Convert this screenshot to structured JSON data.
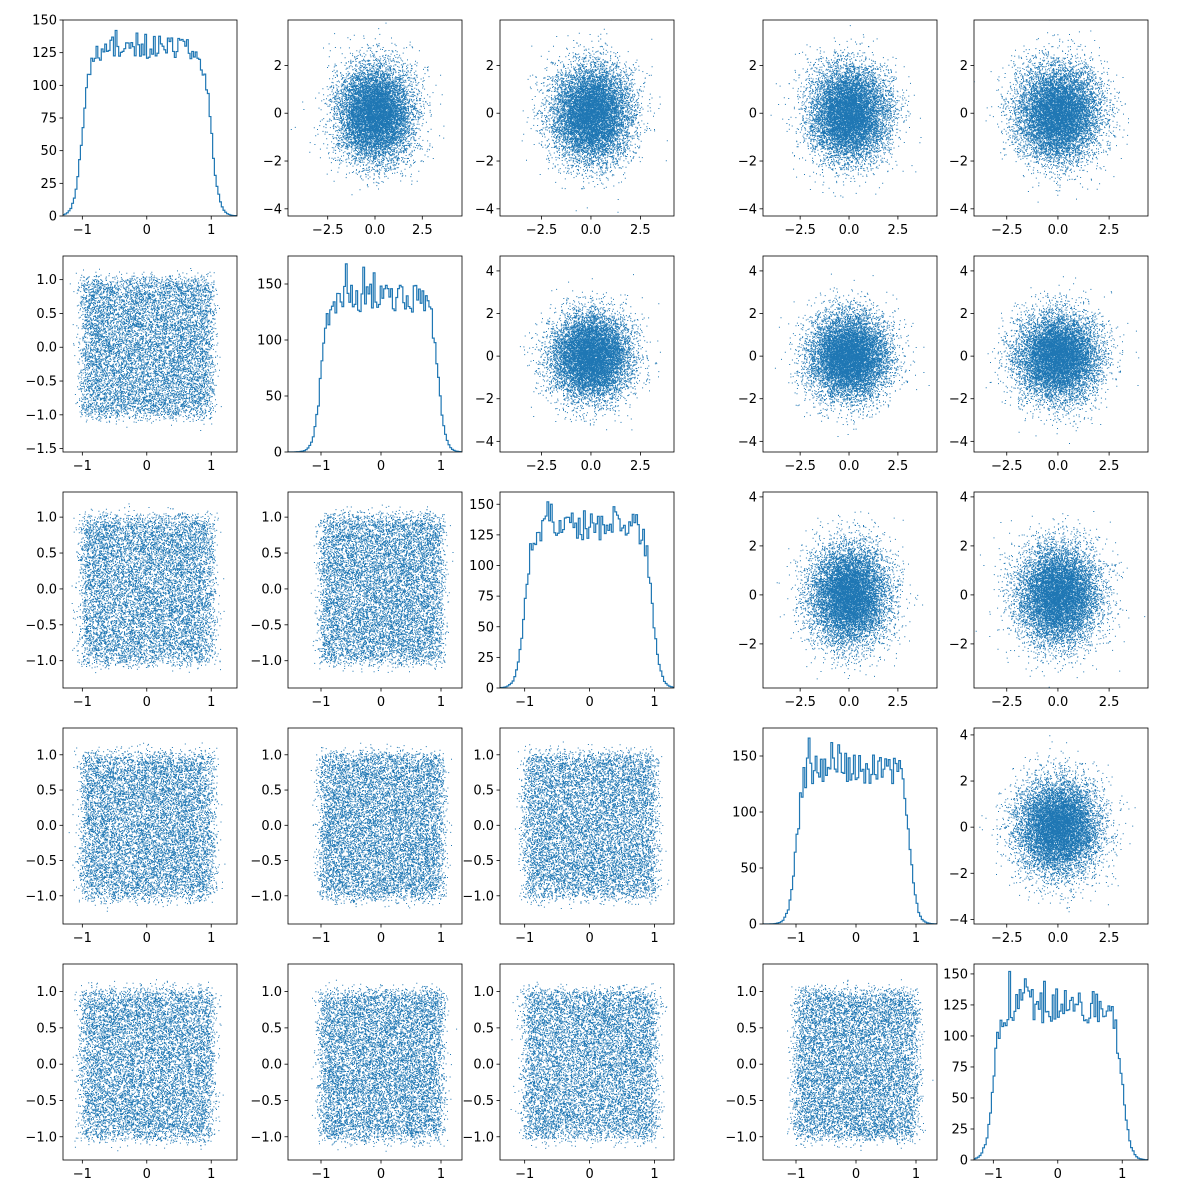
{
  "figure": {
    "background": "#ffffff",
    "series_color": "#1f77b4",
    "axis_color": "#000000"
  },
  "chart_data": [
    {
      "id": "p11",
      "type": "histogram",
      "row": 1,
      "col": 1,
      "xlim": [
        -1.3,
        1.4
      ],
      "ylim": [
        0,
        150
      ],
      "xticks": [
        -1,
        0,
        1
      ],
      "yticks": [
        0,
        25,
        50,
        75,
        100,
        125,
        150
      ],
      "profile": {
        "left_edge": -1.0,
        "right_edge": 1.0,
        "plateau": [
          120,
          138
        ],
        "drop_width": 0.13,
        "peaks": [
          142,
          140,
          139
        ]
      },
      "seed": 11
    },
    {
      "id": "p12",
      "type": "scatter",
      "row": 1,
      "col": 2,
      "xlim": [
        -4.6,
        4.6
      ],
      "ylim": [
        -4.3,
        3.9
      ],
      "xticks": [
        -2.5,
        0.0,
        2.5
      ],
      "yticks": [
        -4,
        -2,
        0,
        2
      ],
      "distribution": "normal",
      "center": [
        0,
        0
      ],
      "std": [
        1,
        1
      ],
      "n": 10000,
      "seed": 12
    },
    {
      "id": "p13",
      "type": "scatter",
      "row": 1,
      "col": 3,
      "xlim": [
        -4.6,
        4.2
      ],
      "ylim": [
        -4.3,
        3.9
      ],
      "xticks": [
        -2.5,
        0.0,
        2.5
      ],
      "yticks": [
        -4,
        -2,
        0,
        2
      ],
      "distribution": "normal",
      "center": [
        0,
        0
      ],
      "std": [
        1,
        1
      ],
      "n": 10000,
      "seed": 13
    },
    {
      "id": "p14",
      "type": "scatter",
      "row": 1,
      "col": 4,
      "xlim": [
        -4.4,
        4.5
      ],
      "ylim": [
        -4.3,
        3.9
      ],
      "xticks": [
        -2.5,
        0.0,
        2.5
      ],
      "yticks": [
        -4,
        -2,
        0,
        2
      ],
      "distribution": "normal",
      "center": [
        0,
        0
      ],
      "std": [
        1,
        1
      ],
      "n": 10000,
      "seed": 14
    },
    {
      "id": "p15",
      "type": "scatter",
      "row": 1,
      "col": 5,
      "xlim": [
        -4.1,
        4.4
      ],
      "ylim": [
        -4.3,
        3.9
      ],
      "xticks": [
        -2.5,
        0.0,
        2.5
      ],
      "yticks": [
        -4,
        -2,
        0,
        2
      ],
      "distribution": "normal",
      "center": [
        0,
        0
      ],
      "std": [
        1,
        1
      ],
      "n": 10000,
      "seed": 15
    },
    {
      "id": "p21",
      "type": "scatter",
      "row": 2,
      "col": 1,
      "xlim": [
        -1.3,
        1.4
      ],
      "ylim": [
        -1.55,
        1.35
      ],
      "xticks": [
        -1,
        0,
        1
      ],
      "yticks": [
        -1.5,
        -1.0,
        -0.5,
        0.0,
        0.5,
        1.0
      ],
      "distribution": "uniform",
      "range": [
        -1,
        1
      ],
      "n": 10000,
      "seed": 21
    },
    {
      "id": "p22",
      "type": "histogram",
      "row": 2,
      "col": 2,
      "xlim": [
        -1.55,
        1.35
      ],
      "ylim": [
        0,
        175
      ],
      "xticks": [
        -1,
        0,
        1
      ],
      "yticks": [
        0,
        50,
        100,
        150
      ],
      "profile": {
        "left_edge": -1.0,
        "right_edge": 0.95,
        "plateau": [
          125,
          150
        ],
        "drop_width": 0.13,
        "peaks": [
          168,
          165,
          160
        ]
      },
      "seed": 22
    },
    {
      "id": "p23",
      "type": "scatter",
      "row": 2,
      "col": 3,
      "xlim": [
        -4.6,
        4.2
      ],
      "ylim": [
        -4.5,
        4.7
      ],
      "xticks": [
        -2.5,
        0.0,
        2.5
      ],
      "yticks": [
        -4,
        -2,
        0,
        2,
        4
      ],
      "distribution": "normal",
      "center": [
        0,
        0
      ],
      "std": [
        1,
        1
      ],
      "n": 10000,
      "seed": 23
    },
    {
      "id": "p24",
      "type": "scatter",
      "row": 2,
      "col": 4,
      "xlim": [
        -4.4,
        4.5
      ],
      "ylim": [
        -4.5,
        4.7
      ],
      "xticks": [
        -2.5,
        0.0,
        2.5
      ],
      "yticks": [
        -4,
        -2,
        0,
        2,
        4
      ],
      "distribution": "normal",
      "center": [
        0,
        0
      ],
      "std": [
        1,
        1
      ],
      "n": 10000,
      "seed": 24
    },
    {
      "id": "p25",
      "type": "scatter",
      "row": 2,
      "col": 5,
      "xlim": [
        -4.1,
        4.4
      ],
      "ylim": [
        -4.5,
        4.7
      ],
      "xticks": [
        -2.5,
        0.0,
        2.5
      ],
      "yticks": [
        -4,
        -2,
        0,
        2,
        4
      ],
      "distribution": "normal",
      "center": [
        0,
        0
      ],
      "std": [
        1,
        1
      ],
      "n": 10000,
      "seed": 25
    },
    {
      "id": "p31",
      "type": "scatter",
      "row": 3,
      "col": 1,
      "xlim": [
        -1.3,
        1.4
      ],
      "ylim": [
        -1.38,
        1.35
      ],
      "xticks": [
        -1,
        0,
        1
      ],
      "yticks": [
        -1.0,
        -0.5,
        0.0,
        0.5,
        1.0
      ],
      "distribution": "uniform",
      "range": [
        -1,
        1
      ],
      "n": 10000,
      "seed": 31
    },
    {
      "id": "p32",
      "type": "scatter",
      "row": 3,
      "col": 2,
      "xlim": [
        -1.55,
        1.35
      ],
      "ylim": [
        -1.38,
        1.35
      ],
      "xticks": [
        -1,
        0,
        1
      ],
      "yticks": [
        -1.0,
        -0.5,
        0.0,
        0.5,
        1.0
      ],
      "distribution": "uniform",
      "range": [
        -1,
        1
      ],
      "n": 10000,
      "seed": 32
    },
    {
      "id": "p33",
      "type": "histogram",
      "row": 3,
      "col": 3,
      "xlim": [
        -1.38,
        1.3
      ],
      "ylim": [
        0,
        160
      ],
      "xticks": [
        -1,
        0,
        1
      ],
      "yticks": [
        0,
        25,
        50,
        75,
        100,
        125,
        150
      ],
      "profile": {
        "left_edge": -1.0,
        "right_edge": 0.97,
        "plateau": [
          120,
          145
        ],
        "drop_width": 0.13,
        "peaks": [
          152,
          150,
          148
        ]
      },
      "seed": 33
    },
    {
      "id": "p34",
      "type": "scatter",
      "row": 3,
      "col": 4,
      "xlim": [
        -4.4,
        4.5
      ],
      "ylim": [
        -3.8,
        4.2
      ],
      "xticks": [
        -2.5,
        0.0,
        2.5
      ],
      "yticks": [
        -2,
        0,
        2,
        4
      ],
      "distribution": "normal",
      "center": [
        0,
        0
      ],
      "std": [
        1,
        1
      ],
      "n": 10000,
      "seed": 34
    },
    {
      "id": "p35",
      "type": "scatter",
      "row": 3,
      "col": 5,
      "xlim": [
        -4.1,
        4.4
      ],
      "ylim": [
        -3.8,
        4.2
      ],
      "xticks": [
        -2.5,
        0.0,
        2.5
      ],
      "yticks": [
        -2,
        0,
        2,
        4
      ],
      "distribution": "normal",
      "center": [
        0,
        0
      ],
      "std": [
        1,
        1
      ],
      "n": 10000,
      "seed": 35
    },
    {
      "id": "p41",
      "type": "scatter",
      "row": 4,
      "col": 1,
      "xlim": [
        -1.3,
        1.4
      ],
      "ylim": [
        -1.4,
        1.38
      ],
      "xticks": [
        -1,
        0,
        1
      ],
      "yticks": [
        -1.0,
        -0.5,
        0.0,
        0.5,
        1.0
      ],
      "distribution": "uniform",
      "range": [
        -1,
        1
      ],
      "n": 10000,
      "seed": 41
    },
    {
      "id": "p42",
      "type": "scatter",
      "row": 4,
      "col": 2,
      "xlim": [
        -1.55,
        1.35
      ],
      "ylim": [
        -1.4,
        1.38
      ],
      "xticks": [
        -1,
        0,
        1
      ],
      "yticks": [
        -1.0,
        -0.5,
        0.0,
        0.5,
        1.0
      ],
      "distribution": "uniform",
      "range": [
        -1,
        1
      ],
      "n": 10000,
      "seed": 42
    },
    {
      "id": "p43",
      "type": "scatter",
      "row": 4,
      "col": 3,
      "xlim": [
        -1.38,
        1.3
      ],
      "ylim": [
        -1.4,
        1.38
      ],
      "xticks": [
        -1,
        0,
        1
      ],
      "yticks": [
        -1.0,
        -0.5,
        0.0,
        0.5,
        1.0
      ],
      "distribution": "uniform",
      "range": [
        -1,
        1
      ],
      "n": 10000,
      "seed": 43
    },
    {
      "id": "p44",
      "type": "histogram",
      "row": 4,
      "col": 4,
      "xlim": [
        -1.55,
        1.35
      ],
      "ylim": [
        0,
        175
      ],
      "xticks": [
        -1,
        0,
        1
      ],
      "yticks": [
        0,
        50,
        100,
        150
      ],
      "profile": {
        "left_edge": -1.0,
        "right_edge": 0.9,
        "plateau": [
          125,
          155
        ],
        "drop_width": 0.13,
        "peaks": [
          166,
          162,
          160
        ]
      },
      "seed": 44
    },
    {
      "id": "p45",
      "type": "scatter",
      "row": 4,
      "col": 5,
      "xlim": [
        -4.1,
        4.4
      ],
      "ylim": [
        -4.2,
        4.3
      ],
      "xticks": [
        -2.5,
        0.0,
        2.5
      ],
      "yticks": [
        -4,
        -2,
        0,
        2,
        4
      ],
      "distribution": "normal",
      "center": [
        0,
        0
      ],
      "std": [
        1,
        1
      ],
      "n": 10000,
      "seed": 45
    },
    {
      "id": "p51",
      "type": "scatter",
      "row": 5,
      "col": 1,
      "xlim": [
        -1.3,
        1.4
      ],
      "ylim": [
        -1.32,
        1.38
      ],
      "xticks": [
        -1,
        0,
        1
      ],
      "yticks": [
        -1.0,
        -0.5,
        0.0,
        0.5,
        1.0
      ],
      "distribution": "uniform",
      "range": [
        -1,
        1
      ],
      "n": 10000,
      "seed": 51
    },
    {
      "id": "p52",
      "type": "scatter",
      "row": 5,
      "col": 2,
      "xlim": [
        -1.55,
        1.35
      ],
      "ylim": [
        -1.32,
        1.38
      ],
      "xticks": [
        -1,
        0,
        1
      ],
      "yticks": [
        -1.0,
        -0.5,
        0.0,
        0.5,
        1.0
      ],
      "distribution": "uniform",
      "range": [
        -1,
        1
      ],
      "n": 10000,
      "seed": 52
    },
    {
      "id": "p53",
      "type": "scatter",
      "row": 5,
      "col": 3,
      "xlim": [
        -1.38,
        1.3
      ],
      "ylim": [
        -1.32,
        1.38
      ],
      "xticks": [
        -1,
        0,
        1
      ],
      "yticks": [
        -1.0,
        -0.5,
        0.0,
        0.5,
        1.0
      ],
      "distribution": "uniform",
      "range": [
        -1,
        1
      ],
      "n": 10000,
      "seed": 53
    },
    {
      "id": "p54",
      "type": "scatter",
      "row": 5,
      "col": 4,
      "xlim": [
        -1.55,
        1.35
      ],
      "ylim": [
        -1.32,
        1.38
      ],
      "xticks": [
        -1,
        0,
        1
      ],
      "yticks": [
        -1.0,
        -0.5,
        0.0,
        0.5,
        1.0
      ],
      "distribution": "uniform",
      "range": [
        -1,
        1
      ],
      "n": 10000,
      "seed": 54
    },
    {
      "id": "p55",
      "type": "histogram",
      "row": 5,
      "col": 5,
      "xlim": [
        -1.3,
        1.4
      ],
      "ylim": [
        0,
        158
      ],
      "xticks": [
        -1,
        0,
        1
      ],
      "yticks": [
        0,
        25,
        50,
        75,
        100,
        125,
        150
      ],
      "profile": {
        "left_edge": -1.0,
        "right_edge": 1.0,
        "plateau": [
          110,
          140
        ],
        "drop_width": 0.13,
        "peaks": [
          152,
          146,
          144
        ]
      },
      "seed": 55
    }
  ]
}
